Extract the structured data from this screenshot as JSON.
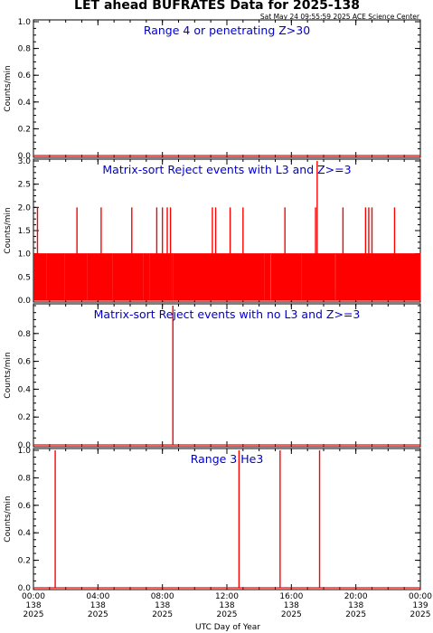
{
  "title": "LET ahead BUFRATES Data for 2025-138",
  "timestamp": "Sat May 24 09:55:59 2025 ACE Science Center",
  "xlabel": "UTC Day of Year",
  "colors": {
    "data": "#ff0000",
    "panel_title": "#0000cc",
    "axes": "#000000"
  },
  "x_ticks": [
    {
      "hours": 0,
      "time": "00:00",
      "doy": "138",
      "year": "2025"
    },
    {
      "hours": 4,
      "time": "04:00",
      "doy": "138",
      "year": "2025"
    },
    {
      "hours": 8,
      "time": "08:00",
      "doy": "138",
      "year": "2025"
    },
    {
      "hours": 12,
      "time": "12:00",
      "doy": "138",
      "year": "2025"
    },
    {
      "hours": 16,
      "time": "16:00",
      "doy": "138",
      "year": "2025"
    },
    {
      "hours": 20,
      "time": "20:00",
      "doy": "138",
      "year": "2025"
    },
    {
      "hours": 24,
      "time": "00:00",
      "doy": "139",
      "year": "2025"
    }
  ],
  "chart_data": [
    {
      "type": "line",
      "title": "Range 4 or  penetrating Z>30",
      "ylabel": "Counts/min",
      "ylim": [
        0,
        1.0
      ],
      "yticks": [
        "0.0",
        "0.2",
        "0.4",
        "0.6",
        "0.8",
        "1.0"
      ],
      "xlim_hours": [
        0,
        24
      ],
      "spikes": [],
      "dense": null
    },
    {
      "type": "line",
      "title": "Matrix-sort Reject events with L3 and Z>=3",
      "ylabel": "Counts/min",
      "ylim": [
        0,
        3.0
      ],
      "yticks": [
        "0.0",
        "0.5",
        "1.0",
        "1.5",
        "2.0",
        "2.5",
        "3.0"
      ],
      "xlim_hours": [
        0,
        24
      ],
      "spikes": [
        {
          "hours": 0.25,
          "value": 2
        },
        {
          "hours": 2.7,
          "value": 2
        },
        {
          "hours": 4.2,
          "value": 2
        },
        {
          "hours": 6.1,
          "value": 2
        },
        {
          "hours": 7.65,
          "value": 2
        },
        {
          "hours": 8.0,
          "value": 2
        },
        {
          "hours": 8.3,
          "value": 2
        },
        {
          "hours": 8.5,
          "value": 2
        },
        {
          "hours": 11.1,
          "value": 2
        },
        {
          "hours": 11.3,
          "value": 2
        },
        {
          "hours": 12.2,
          "value": 2
        },
        {
          "hours": 13.0,
          "value": 2
        },
        {
          "hours": 15.6,
          "value": 2
        },
        {
          "hours": 17.5,
          "value": 2
        },
        {
          "hours": 17.6,
          "value": 3
        },
        {
          "hours": 19.2,
          "value": 2
        },
        {
          "hours": 20.6,
          "value": 2
        },
        {
          "hours": 20.8,
          "value": 2
        },
        {
          "hours": 21.0,
          "value": 2
        },
        {
          "hours": 22.4,
          "value": 2
        }
      ],
      "dense": {
        "value": 1,
        "from_hours": 0,
        "to_hours": 24,
        "density_per_hour": 22
      }
    },
    {
      "type": "line",
      "title": "Matrix-sort Reject events with no L3 and Z>=3",
      "ylabel": "Counts/min",
      "ylim": [
        0,
        1.0
      ],
      "yticks": [
        "0.0",
        "0.2",
        "0.4",
        "0.6",
        "0.8"
      ],
      "xlim_hours": [
        0,
        24
      ],
      "spikes": [
        {
          "hours": 8.65,
          "value": 1
        }
      ],
      "dense": null
    },
    {
      "type": "line",
      "title": "Range 3 He3",
      "ylabel": "Counts/min",
      "ylim": [
        0,
        1.0
      ],
      "yticks": [
        "0.0",
        "0.2",
        "0.4",
        "0.6",
        "0.8",
        "1.0"
      ],
      "xlim_hours": [
        0,
        24
      ],
      "spikes": [
        {
          "hours": 1.35,
          "value": 1
        },
        {
          "hours": 12.75,
          "value": 1
        },
        {
          "hours": 15.3,
          "value": 1
        },
        {
          "hours": 17.75,
          "value": 1
        }
      ],
      "dense": null
    }
  ]
}
